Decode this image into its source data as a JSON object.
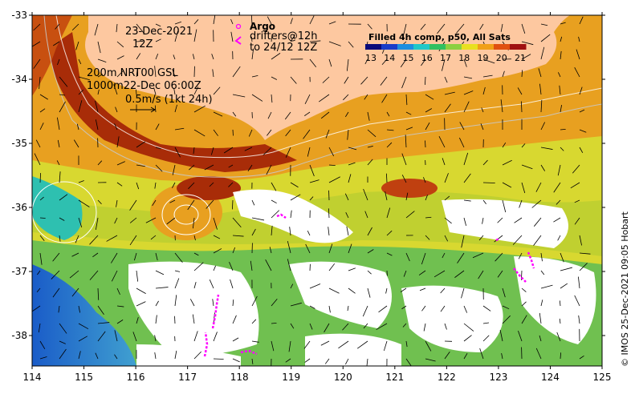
{
  "map": {
    "date_line1": "23-Dec-2021",
    "date_line2": "12Z",
    "argo_label": "Argo",
    "drifters_line1": "drifters@12h",
    "drifters_line2": "to 24/12 12Z",
    "contours_line1": "200m  NRT00 GSL",
    "contours_line2": "1000m22-Dec 06:00Z",
    "vector_scale_label": "0.5m/s (1kt 24h)",
    "colorbar_title": "Filled 4h comp, p50, All Sats",
    "colorbar_ticks": [
      "13",
      "14",
      "15",
      "16",
      "17",
      "18",
      "19",
      "20",
      "21"
    ],
    "colorbar_colors": [
      "#0a0a7a",
      "#1a3cc8",
      "#1e8ee0",
      "#22c8c8",
      "#30c060",
      "#8cd040",
      "#e8e020",
      "#f0a018",
      "#e05010",
      "#a01010"
    ],
    "copyright": "© IMOS 25-Dec-2021 09:05 Hobart",
    "lon_ticks": [
      "114",
      "115",
      "116",
      "117",
      "118",
      "119",
      "120",
      "121",
      "122",
      "123",
      "124",
      "125"
    ],
    "lat_ticks": [
      "-33",
      "-34",
      "-35",
      "-36",
      "-37",
      "-38"
    ],
    "land_color": "#fdc8a0",
    "no_data_color": "#ffffff",
    "argo_color": "#ff00ff",
    "drifter_color": "#ff00ff"
  }
}
